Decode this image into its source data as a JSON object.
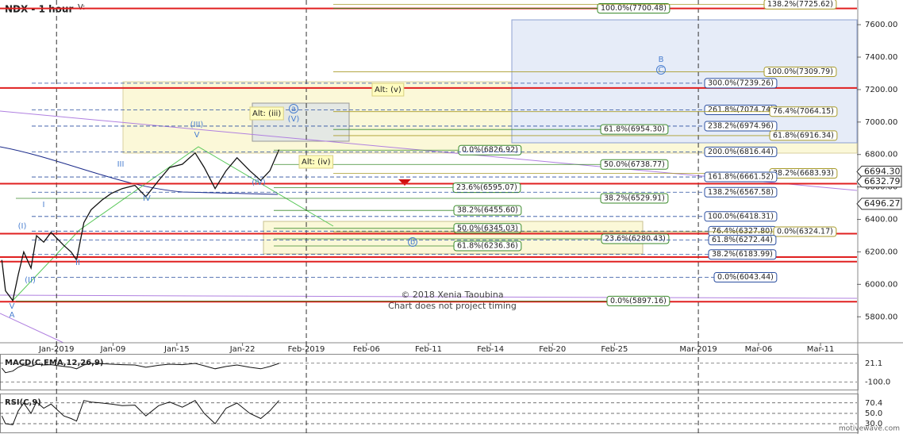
{
  "chart_data": {
    "type": "line",
    "title": "NDX - 1 hour",
    "legend": "V:",
    "color": "#111111",
    "x": [
      1,
      3,
      7,
      10,
      13,
      17,
      20,
      24,
      28,
      35,
      39,
      42,
      46,
      50,
      56,
      61,
      67,
      74,
      80,
      87,
      93,
      100,
      107,
      112,
      118,
      124,
      130,
      137,
      143,
      148,
      153
    ],
    "values": [
      6150,
      5960,
      5900,
      6060,
      6200,
      6100,
      6300,
      6260,
      6320,
      6240,
      6200,
      6150,
      6380,
      6460,
      6520,
      6560,
      6590,
      6610,
      6540,
      6640,
      6720,
      6740,
      6810,
      6720,
      6590,
      6700,
      6780,
      6700,
      6640,
      6700,
      6830
    ],
    "xlim": [
      0,
      470
    ],
    "ylim": [
      5640,
      7752
    ],
    "xticks": [
      {
        "value": 31,
        "label": "Jan-2019"
      },
      {
        "value": 62,
        "label": "Jan-09"
      },
      {
        "value": 97,
        "label": "Jan-15"
      },
      {
        "value": 133,
        "label": "Jan-22"
      },
      {
        "value": 168,
        "label": "Feb-2019"
      },
      {
        "value": 201,
        "label": "Feb-06"
      },
      {
        "value": 235,
        "label": "Feb-11"
      },
      {
        "value": 269,
        "label": "Feb-14"
      },
      {
        "value": 303,
        "label": "Feb-20"
      },
      {
        "value": 337,
        "label": "Feb-25"
      },
      {
        "value": 383,
        "label": "Mar-2019"
      },
      {
        "value": 416,
        "label": "Mar-06"
      },
      {
        "value": 450,
        "label": "Mar-11"
      }
    ],
    "yticks": [
      {
        "value": 5800,
        "label": "5800.00"
      },
      {
        "value": 6000,
        "label": "6000.00"
      },
      {
        "value": 6200,
        "label": "6200.00"
      },
      {
        "value": 6400,
        "label": "6400.00"
      },
      {
        "value": 6600,
        "label": "6600.00"
      },
      {
        "value": 6800,
        "label": "6800.00"
      },
      {
        "value": 7000,
        "label": "7000.00"
      },
      {
        "value": 7200,
        "label": "7200.00"
      },
      {
        "value": 7400,
        "label": "7400.00"
      },
      {
        "value": 7600,
        "label": "7600.00"
      }
    ],
    "price_tags": [
      {
        "value": 6694.3,
        "label": "6694.30"
      },
      {
        "value": 6632.79,
        "label": "6632.79"
      },
      {
        "value": 6496.27,
        "label": "6496.27"
      }
    ],
    "levels": [
      7700,
      7210,
      6620,
      6312,
      6168,
      6140,
      5893
    ],
    "level_color": "#e02020",
    "fib_levels": [
      {
        "label": "100.0%(7700.48)",
        "value": 7700.48,
        "color": "#3a8a2a"
      },
      {
        "label": "138.2%(7725.62)",
        "value": 7725.62,
        "color": "#a89b2a"
      },
      {
        "label": "100.0%(7309.79)",
        "value": 7309.79,
        "color": "#a89b2a"
      },
      {
        "label": "300.0%(7239.26)",
        "value": 7239.26,
        "color": "#2b4fa0"
      },
      {
        "label": "261.8%(7074.74)",
        "value": 7074.74,
        "color": "#2b4fa0"
      },
      {
        "label": "76.4%(7064.15)",
        "value": 7064.15,
        "color": "#a89b2a"
      },
      {
        "label": "238.2%(6974.96)",
        "value": 6974.96,
        "color": "#2b4fa0"
      },
      {
        "label": "61.8%(6954.30)",
        "value": 6954.3,
        "color": "#3a8a2a"
      },
      {
        "label": "61.8%(6916.34)",
        "value": 6916.34,
        "color": "#a89b2a"
      },
      {
        "label": "0.0%(6826.92)",
        "value": 6826.92,
        "color": "#3a8a2a"
      },
      {
        "label": "200.0%(6816.44)",
        "value": 6816.44,
        "color": "#2b4fa0"
      },
      {
        "label": "50.0%(6738.77)",
        "value": 6738.77,
        "color": "#3a8a2a"
      },
      {
        "label": "38.2%(6683.93)",
        "value": 6683.93,
        "color": "#a89b2a"
      },
      {
        "label": "161.8%(6661.52)",
        "value": 6661.52,
        "color": "#2b4fa0"
      },
      {
        "label": "23.6%(6595.07)",
        "value": 6595.07,
        "color": "#3a8a2a"
      },
      {
        "label": "138.2%(6567.58)",
        "value": 6567.58,
        "color": "#2b4fa0"
      },
      {
        "label": "38.2%(6529.91)",
        "value": 6529.91,
        "color": "#3a8a2a"
      },
      {
        "label": "38.2%(6455.60)",
        "value": 6455.6,
        "color": "#3a8a2a"
      },
      {
        "label": "100.0%(6418.31)",
        "value": 6418.31,
        "color": "#2b4fa0"
      },
      {
        "label": "50.0%(6345.03)",
        "value": 6345.03,
        "color": "#3a8a2a"
      },
      {
        "label": "76.4%(6327.80)",
        "value": 6327.8,
        "color": "#2b4fa0"
      },
      {
        "label": "0.0%(6324.17)",
        "value": 6324.17,
        "color": "#a89b2a"
      },
      {
        "label": "23.6%(6280.43)",
        "value": 6280.43,
        "color": "#3a8a2a"
      },
      {
        "label": "61.8%(6272.44)",
        "value": 6272.44,
        "color": "#2b4fa0"
      },
      {
        "label": "61.8%(6236.36)",
        "value": 6236.36,
        "color": "#3a8a2a"
      },
      {
        "label": "38.2%(6183.99)",
        "value": 6183.99,
        "color": "#2b4fa0"
      },
      {
        "label": "0.0%(6043.44)",
        "value": 6043.44,
        "color": "#2b4fa0"
      },
      {
        "label": "0.0%(5897.16)",
        "value": 5897.16,
        "color": "#3a8a2a"
      }
    ],
    "wave_labels": [
      "A",
      "V",
      "(I)",
      "I",
      "(II)",
      "II",
      "III",
      "IV",
      "(III)",
      "V",
      "(IV)",
      "(V)",
      "a",
      "B",
      "C",
      "b"
    ],
    "alt_labels": [
      "Alt: (iii)",
      "Alt: (v)",
      "Alt: (iv)"
    ],
    "notes": [
      "© 2018 Xenia Taoubina",
      "Chart does not project timing"
    ],
    "watermark": "motivewave.com",
    "macd": {
      "title": "MACD(C,EMA,12,26,9)",
      "color": "#111111",
      "ylim": [
        -150,
        77
      ],
      "yticks": [
        21.1,
        {
          "value": -100,
          "label": "-100.0"
        }
      ],
      "values": [
        -10,
        -40,
        -30,
        -5,
        10,
        0,
        15,
        10,
        12,
        0,
        -5,
        -15,
        10,
        20,
        18,
        15,
        12,
        10,
        -5,
        8,
        15,
        12,
        20,
        5,
        -15,
        0,
        10,
        -5,
        -15,
        0,
        20
      ]
    },
    "rsi": {
      "title": "RSI(C,9)",
      "color": "#111111",
      "ylim": [
        13,
        87
      ],
      "yticks": [
        70.4,
        {
          "value": 50,
          "label": "50.0"
        },
        {
          "value": 30,
          "label": "30.0"
        }
      ],
      "values": [
        45,
        30,
        28,
        55,
        70,
        50,
        72,
        60,
        68,
        45,
        40,
        35,
        75,
        72,
        70,
        68,
        65,
        66,
        45,
        65,
        72,
        62,
        75,
        50,
        30,
        60,
        70,
        50,
        40,
        55,
        75
      ]
    }
  }
}
